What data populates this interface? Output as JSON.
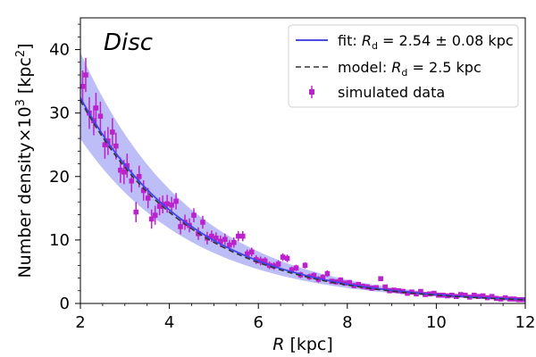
{
  "chart_data": {
    "type": "scatter",
    "panel_title": "Disc",
    "xlabel": "R [kpc]",
    "ylabel": "Number density×10³ [kpc²]",
    "xlim": [
      2,
      12
    ],
    "ylim": [
      0,
      45
    ],
    "xticks": [
      2,
      4,
      6,
      8,
      10,
      12
    ],
    "yticks": [
      0,
      10,
      20,
      30,
      40
    ],
    "legend_position": "top-right",
    "legend": [
      {
        "label": "fit: R_d = 2.54 ± 0.08 kpc",
        "style": "solid-line",
        "color": "#3333dd"
      },
      {
        "label": "model: R_d = 2.5 kpc",
        "style": "dashed-line",
        "color": "#333333"
      },
      {
        "label": "simulated data",
        "style": "errorbar-marker",
        "color": "#bb22cc"
      }
    ],
    "fit": {
      "amplitude": 71.2,
      "scale_length": 2.54,
      "band_upper_factor": 1.22,
      "band_lower_factor": 0.8,
      "color": "#4444ee",
      "band_color": "#9999f5"
    },
    "model": {
      "amplitude": 71.2,
      "scale_length": 2.5,
      "color": "#333333"
    },
    "series": [
      {
        "name": "simulated data",
        "color": "#bb22cc",
        "points": [
          {
            "x": 2.05,
            "y": 34.2,
            "err": 2.5
          },
          {
            "x": 2.12,
            "y": 36.0,
            "err": 2.7
          },
          {
            "x": 2.2,
            "y": 30.0,
            "err": 2.5
          },
          {
            "x": 2.3,
            "y": 28.8,
            "err": 2.3
          },
          {
            "x": 2.35,
            "y": 30.8,
            "err": 2.4
          },
          {
            "x": 2.45,
            "y": 29.5,
            "err": 2.3
          },
          {
            "x": 2.55,
            "y": 25.0,
            "err": 2.2
          },
          {
            "x": 2.62,
            "y": 25.6,
            "err": 2.2
          },
          {
            "x": 2.72,
            "y": 27.0,
            "err": 2.2
          },
          {
            "x": 2.8,
            "y": 24.8,
            "err": 2.1
          },
          {
            "x": 2.9,
            "y": 21.0,
            "err": 2.0
          },
          {
            "x": 2.98,
            "y": 20.7,
            "err": 1.9
          },
          {
            "x": 3.05,
            "y": 21.7,
            "err": 1.9
          },
          {
            "x": 3.15,
            "y": 19.3,
            "err": 1.8
          },
          {
            "x": 3.25,
            "y": 14.4,
            "err": 1.6
          },
          {
            "x": 3.32,
            "y": 20.0,
            "err": 1.7
          },
          {
            "x": 3.42,
            "y": 17.8,
            "err": 1.6
          },
          {
            "x": 3.52,
            "y": 16.6,
            "err": 1.6
          },
          {
            "x": 3.6,
            "y": 13.3,
            "err": 1.5
          },
          {
            "x": 3.68,
            "y": 13.9,
            "err": 1.5
          },
          {
            "x": 3.78,
            "y": 15.3,
            "err": 1.4
          },
          {
            "x": 3.85,
            "y": 15.6,
            "err": 1.4
          },
          {
            "x": 3.95,
            "y": 15.7,
            "err": 1.4
          },
          {
            "x": 4.05,
            "y": 15.5,
            "err": 1.3
          },
          {
            "x": 4.15,
            "y": 16.1,
            "err": 1.3
          },
          {
            "x": 4.25,
            "y": 12.1,
            "err": 1.2
          },
          {
            "x": 4.35,
            "y": 12.8,
            "err": 1.2
          },
          {
            "x": 4.45,
            "y": 12.3,
            "err": 1.1
          },
          {
            "x": 4.55,
            "y": 13.9,
            "err": 1.1
          },
          {
            "x": 4.65,
            "y": 11.0,
            "err": 1.0
          },
          {
            "x": 4.75,
            "y": 12.8,
            "err": 1.0
          },
          {
            "x": 4.85,
            "y": 10.3,
            "err": 1.0
          },
          {
            "x": 4.95,
            "y": 10.6,
            "err": 0.9
          },
          {
            "x": 5.05,
            "y": 10.3,
            "err": 0.9
          },
          {
            "x": 5.15,
            "y": 9.8,
            "err": 0.9
          },
          {
            "x": 5.25,
            "y": 10.1,
            "err": 0.9
          },
          {
            "x": 5.35,
            "y": 9.2,
            "err": 0.8
          },
          {
            "x": 5.45,
            "y": 9.6,
            "err": 0.8
          },
          {
            "x": 5.55,
            "y": 10.6,
            "err": 0.8
          },
          {
            "x": 5.65,
            "y": 10.6,
            "err": 0.8
          },
          {
            "x": 5.75,
            "y": 7.8,
            "err": 0.7
          },
          {
            "x": 5.85,
            "y": 8.1,
            "err": 0.7
          },
          {
            "x": 5.95,
            "y": 6.9,
            "err": 0.7
          },
          {
            "x": 6.05,
            "y": 6.7,
            "err": 0.7
          },
          {
            "x": 6.15,
            "y": 6.7,
            "err": 0.6
          },
          {
            "x": 6.25,
            "y": 6.0,
            "err": 0.6
          },
          {
            "x": 6.35,
            "y": 5.9,
            "err": 0.6
          },
          {
            "x": 6.45,
            "y": 6.2,
            "err": 0.6
          },
          {
            "x": 6.55,
            "y": 7.3,
            "err": 0.6
          },
          {
            "x": 6.65,
            "y": 7.1,
            "err": 0.6
          },
          {
            "x": 6.75,
            "y": 5.3,
            "err": 0.5
          },
          {
            "x": 6.85,
            "y": 5.6,
            "err": 0.5
          },
          {
            "x": 6.95,
            "y": 4.5,
            "err": 0.5
          },
          {
            "x": 7.05,
            "y": 6.0,
            "err": 0.5
          },
          {
            "x": 7.15,
            "y": 4.2,
            "err": 0.5
          },
          {
            "x": 7.25,
            "y": 4.4,
            "err": 0.5
          },
          {
            "x": 7.35,
            "y": 3.8,
            "err": 0.5
          },
          {
            "x": 7.45,
            "y": 4.1,
            "err": 0.5
          },
          {
            "x": 7.55,
            "y": 4.7,
            "err": 0.5
          },
          {
            "x": 7.65,
            "y": 3.5,
            "err": 0.4
          },
          {
            "x": 7.75,
            "y": 3.4,
            "err": 0.4
          },
          {
            "x": 7.85,
            "y": 3.7,
            "err": 0.4
          },
          {
            "x": 7.95,
            "y": 3.2,
            "err": 0.4
          },
          {
            "x": 8.05,
            "y": 3.3,
            "err": 0.4
          },
          {
            "x": 8.15,
            "y": 2.8,
            "err": 0.4
          },
          {
            "x": 8.25,
            "y": 3.0,
            "err": 0.4
          },
          {
            "x": 8.35,
            "y": 2.7,
            "err": 0.4
          },
          {
            "x": 8.45,
            "y": 2.6,
            "err": 0.4
          },
          {
            "x": 8.55,
            "y": 2.4,
            "err": 0.4
          },
          {
            "x": 8.65,
            "y": 2.5,
            "err": 0.3
          },
          {
            "x": 8.75,
            "y": 3.9,
            "err": 0.3
          },
          {
            "x": 8.85,
            "y": 2.6,
            "err": 0.3
          },
          {
            "x": 8.95,
            "y": 2.0,
            "err": 0.3
          },
          {
            "x": 9.05,
            "y": 2.1,
            "err": 0.3
          },
          {
            "x": 9.15,
            "y": 2.0,
            "err": 0.3
          },
          {
            "x": 9.25,
            "y": 1.9,
            "err": 0.3
          },
          {
            "x": 9.35,
            "y": 1.6,
            "err": 0.3
          },
          {
            "x": 9.45,
            "y": 1.8,
            "err": 0.3
          },
          {
            "x": 9.55,
            "y": 1.5,
            "err": 0.3
          },
          {
            "x": 9.65,
            "y": 1.9,
            "err": 0.3
          },
          {
            "x": 9.75,
            "y": 1.4,
            "err": 0.3
          },
          {
            "x": 9.85,
            "y": 1.5,
            "err": 0.3
          },
          {
            "x": 9.95,
            "y": 1.6,
            "err": 0.3
          },
          {
            "x": 10.05,
            "y": 1.3,
            "err": 0.3
          },
          {
            "x": 10.15,
            "y": 1.3,
            "err": 0.3
          },
          {
            "x": 10.25,
            "y": 1.2,
            "err": 0.3
          },
          {
            "x": 10.35,
            "y": 1.3,
            "err": 0.3
          },
          {
            "x": 10.45,
            "y": 1.1,
            "err": 0.3
          },
          {
            "x": 10.55,
            "y": 1.4,
            "err": 0.3
          },
          {
            "x": 10.65,
            "y": 1.3,
            "err": 0.3
          },
          {
            "x": 10.75,
            "y": 1.0,
            "err": 0.3
          },
          {
            "x": 10.85,
            "y": 1.3,
            "err": 0.3
          },
          {
            "x": 10.95,
            "y": 1.1,
            "err": 0.3
          },
          {
            "x": 11.05,
            "y": 1.2,
            "err": 0.3
          },
          {
            "x": 11.15,
            "y": 0.9,
            "err": 0.3
          },
          {
            "x": 11.25,
            "y": 1.1,
            "err": 0.3
          },
          {
            "x": 11.35,
            "y": 0.8,
            "err": 0.2
          },
          {
            "x": 11.45,
            "y": 0.7,
            "err": 0.2
          },
          {
            "x": 11.55,
            "y": 0.9,
            "err": 0.2
          },
          {
            "x": 11.65,
            "y": 0.7,
            "err": 0.2
          },
          {
            "x": 11.75,
            "y": 0.7,
            "err": 0.2
          },
          {
            "x": 11.85,
            "y": 0.6,
            "err": 0.2
          },
          {
            "x": 11.95,
            "y": 0.6,
            "err": 0.2
          }
        ]
      }
    ]
  }
}
